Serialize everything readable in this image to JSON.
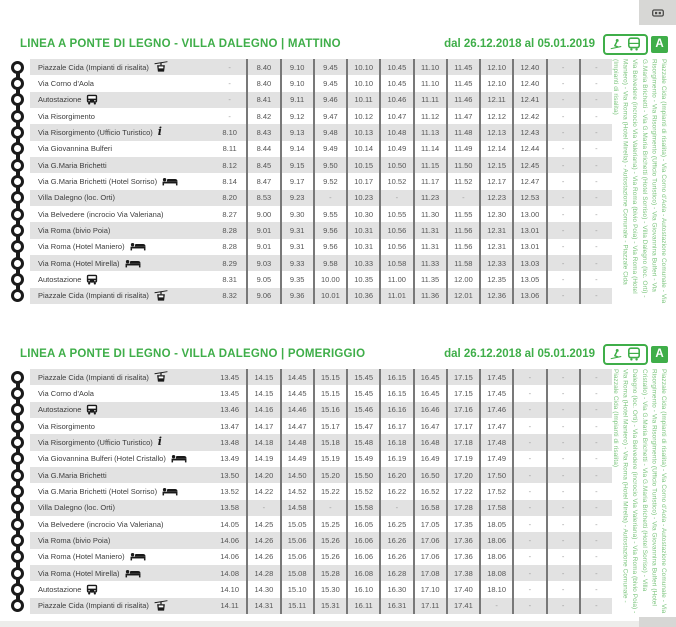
{
  "page": {
    "colors": {
      "green": "#3fae49",
      "light_green": "#7cc57e",
      "row_alt": "#e2e2e2",
      "separator": "#787878"
    },
    "top_widget_icon": "mini-bus"
  },
  "badge": {
    "letter": "A"
  },
  "sections": [
    {
      "id": "mattino",
      "title": "LINEA A PONTE DI LEGNO - VILLA DALEGNO | MATTINO",
      "date_range": "dal 26.12.2018 al 05.01.2019",
      "route_summary": "Piazzale Cida (Impianti di risalita) - Via Corno d'Aola - Autostazione Comunale - Via Risorgimento - Via Risorgimento (Ufficio Turistico) - Via Giovannina Bulferi - Via G.Maria Brichetti - Via G.Maria Brichetti (Hotel Sorriso) - Villa Dalegno (loc. Orti) - Via Belvedere (incrocio Via Valeriana) - Via Roma (bivio Poia) - Via Roma (Hotel Maniero) - Via Roma (Hotel Mirella) - Autostazione Comunale - Piazzale Cida (Impianti di risalita)",
      "rows": [
        {
          "stop": "Piazzale Cida (Impianti di risalita)",
          "icon": "cablecar",
          "times": [
            "-",
            "8.40",
            "9.10",
            "9.45",
            "10.10",
            "10.45",
            "11.10",
            "11.45",
            "12.10",
            "12.40",
            "-",
            "-"
          ]
        },
        {
          "stop": "Via Corno d'Aola",
          "icon": null,
          "times": [
            "-",
            "8.40",
            "9.10",
            "9.45",
            "10.10",
            "10.45",
            "11.10",
            "11.45",
            "12.10",
            "12.40",
            "-",
            "-"
          ]
        },
        {
          "stop": "Autostazione",
          "icon": "bus",
          "times": [
            "-",
            "8.41",
            "9.11",
            "9.46",
            "10.11",
            "10.46",
            "11.11",
            "11.46",
            "12.11",
            "12.41",
            "-",
            "-"
          ]
        },
        {
          "stop": "Via Risorgimento",
          "icon": null,
          "times": [
            "-",
            "8.42",
            "9.12",
            "9.47",
            "10.12",
            "10.47",
            "11.12",
            "11.47",
            "12.12",
            "12.42",
            "-",
            "-"
          ]
        },
        {
          "stop": "Via Risorgimento (Ufficio Turistico)",
          "icon": "info",
          "times": [
            "8.10",
            "8.43",
            "9.13",
            "9.48",
            "10.13",
            "10.48",
            "11.13",
            "11.48",
            "12.13",
            "12.43",
            "-",
            "-"
          ]
        },
        {
          "stop": "Via Giovannina Bulferi",
          "icon": null,
          "times": [
            "8.11",
            "8.44",
            "9.14",
            "9.49",
            "10.14",
            "10.49",
            "11.14",
            "11.49",
            "12.14",
            "12.44",
            "-",
            "-"
          ]
        },
        {
          "stop": "Via G.Maria Brichetti",
          "icon": null,
          "times": [
            "8.12",
            "8.45",
            "9.15",
            "9.50",
            "10.15",
            "10.50",
            "11.15",
            "11.50",
            "12.15",
            "12.45",
            "-",
            "-"
          ]
        },
        {
          "stop": "Via G.Maria Brichetti (Hotel Sorriso)",
          "icon": "bed",
          "times": [
            "8.14",
            "8.47",
            "9.17",
            "9.52",
            "10.17",
            "10.52",
            "11.17",
            "11.52",
            "12.17",
            "12.47",
            "-",
            "-"
          ]
        },
        {
          "stop": "Villa Dalegno (loc. Orti)",
          "icon": null,
          "times": [
            "8.20",
            "8.53",
            "9.23",
            "-",
            "10.23",
            "-",
            "11.23",
            "-",
            "12.23",
            "12.53",
            "-",
            "-"
          ]
        },
        {
          "stop": "Via Belvedere (incrocio Via Valeriana)",
          "icon": null,
          "times": [
            "8.27",
            "9.00",
            "9.30",
            "9.55",
            "10.30",
            "10.55",
            "11.30",
            "11.55",
            "12.30",
            "13.00",
            "-",
            "-"
          ]
        },
        {
          "stop": "Via Roma (bivio Poia)",
          "icon": null,
          "times": [
            "8.28",
            "9.01",
            "9.31",
            "9.56",
            "10.31",
            "10.56",
            "11.31",
            "11.56",
            "12.31",
            "13.01",
            "-",
            "-"
          ]
        },
        {
          "stop": "Via Roma (Hotel Maniero)",
          "icon": "bed",
          "times": [
            "8.28",
            "9.01",
            "9.31",
            "9.56",
            "10.31",
            "10.56",
            "11.31",
            "11.56",
            "12.31",
            "13.01",
            "-",
            "-"
          ]
        },
        {
          "stop": "Via Roma (Hotel Mirella)",
          "icon": "bed",
          "times": [
            "8.29",
            "9.03",
            "9.33",
            "9.58",
            "10.33",
            "10.58",
            "11.33",
            "11.58",
            "12.33",
            "13.03",
            "-",
            "-"
          ]
        },
        {
          "stop": "Autostazione",
          "icon": "bus",
          "times": [
            "8.31",
            "9.05",
            "9.35",
            "10.00",
            "10.35",
            "11.00",
            "11.35",
            "12.00",
            "12.35",
            "13.05",
            "-",
            "-"
          ]
        },
        {
          "stop": "Piazzale Cida (Impianti di risalita)",
          "icon": "cablecar",
          "times": [
            "8.32",
            "9.06",
            "9.36",
            "10.01",
            "10.36",
            "11.01",
            "11.36",
            "12.01",
            "12.36",
            "13.06",
            "-",
            "-"
          ]
        }
      ]
    },
    {
      "id": "pomeriggio",
      "title": "LINEA A PONTE DI LEGNO - VILLA DALEGNO | POMERIGGIO",
      "date_range": "dal 26.12.2018 al 05.01.2019",
      "route_summary": "Piazzale Cida (Impianti di risalita) - Via Corno d'Aola - Autostazione Comunale - Via Risorgimento - Via Risorgimento (Ufficio Turistico) - Via Giovannina Bulferi (Hotel Cristallo) - Via G.Maria Brichetti - Via G.Maria Brichetti (Hotel Sorriso) - Villa Dalegno (loc. Orti) - Via Belvedere (incrocio Via Valeriana) - Via Roma (bivio Poia) - Via Roma (Hotel Maniero) - Via Roma (Hotel Mirella) - Autostazione Comunale - Piazzale Cida (Impianti di risalita)",
      "rows": [
        {
          "stop": "Piazzale Cida (Impianti di risalita)",
          "icon": "cablecar",
          "times": [
            "13.45",
            "14.15",
            "14.45",
            "15.15",
            "15.45",
            "16.15",
            "16.45",
            "17.15",
            "17.45",
            "-",
            "-",
            "-"
          ]
        },
        {
          "stop": "Via Corno d'Aola",
          "icon": null,
          "times": [
            "13.45",
            "14.15",
            "14.45",
            "15.15",
            "15.45",
            "16.15",
            "16.45",
            "17.15",
            "17.45",
            "-",
            "-",
            "-"
          ]
        },
        {
          "stop": "Autostazione",
          "icon": "bus",
          "times": [
            "13.46",
            "14.16",
            "14.46",
            "15.16",
            "15.46",
            "16.16",
            "16.46",
            "17.16",
            "17.46",
            "-",
            "-",
            "-"
          ]
        },
        {
          "stop": "Via Risorgimento",
          "icon": null,
          "times": [
            "13.47",
            "14.17",
            "14.47",
            "15.17",
            "15.47",
            "16.17",
            "16.47",
            "17.17",
            "17.47",
            "-",
            "-",
            "-"
          ]
        },
        {
          "stop": "Via Risorgimento (Ufficio Turistico)",
          "icon": "info",
          "times": [
            "13.48",
            "14.18",
            "14.48",
            "15.18",
            "15.48",
            "16.18",
            "16.48",
            "17.18",
            "17.48",
            "-",
            "-",
            "-"
          ]
        },
        {
          "stop": "Via Giovannina Bulferi (Hotel Cristallo)",
          "icon": "bed",
          "times": [
            "13.49",
            "14.19",
            "14.49",
            "15.19",
            "15.49",
            "16.19",
            "16.49",
            "17.19",
            "17.49",
            "-",
            "-",
            "-"
          ]
        },
        {
          "stop": "Via G.Maria Brichetti",
          "icon": null,
          "times": [
            "13.50",
            "14.20",
            "14.50",
            "15.20",
            "15.50",
            "16.20",
            "16.50",
            "17.20",
            "17.50",
            "-",
            "-",
            "-"
          ]
        },
        {
          "stop": "Via G.Maria Brichetti (Hotel Sorriso)",
          "icon": "bed",
          "times": [
            "13.52",
            "14.22",
            "14.52",
            "15.22",
            "15.52",
            "16.22",
            "16.52",
            "17.22",
            "17.52",
            "-",
            "-",
            "-"
          ]
        },
        {
          "stop": "Villa Dalegno (loc. Orti)",
          "icon": null,
          "times": [
            "13.58",
            "-",
            "14.58",
            "-",
            "15.58",
            "-",
            "16.58",
            "17.28",
            "17.58",
            "-",
            "-",
            "-"
          ]
        },
        {
          "stop": "Via Belvedere (incrocio Via Valeriana)",
          "icon": null,
          "times": [
            "14.05",
            "14.25",
            "15.05",
            "15.25",
            "16.05",
            "16.25",
            "17.05",
            "17.35",
            "18.05",
            "-",
            "-",
            "-"
          ]
        },
        {
          "stop": "Via Roma (bivio Poia)",
          "icon": null,
          "times": [
            "14.06",
            "14.26",
            "15.06",
            "15.26",
            "16.06",
            "16.26",
            "17.06",
            "17.36",
            "18.06",
            "-",
            "-",
            "-"
          ]
        },
        {
          "stop": "Via Roma (Hotel Maniero)",
          "icon": "bed",
          "times": [
            "14.06",
            "14.26",
            "15.06",
            "15.26",
            "16.06",
            "16.26",
            "17.06",
            "17.36",
            "18.06",
            "-",
            "-",
            "-"
          ]
        },
        {
          "stop": "Via Roma (Hotel Mirella)",
          "icon": "bed",
          "times": [
            "14.08",
            "14.28",
            "15.08",
            "15.28",
            "16.08",
            "16.28",
            "17.08",
            "17.38",
            "18.08",
            "-",
            "-",
            "-"
          ]
        },
        {
          "stop": "Autostazione",
          "icon": "bus",
          "times": [
            "14.10",
            "14.30",
            "15.10",
            "15.30",
            "16.10",
            "16.30",
            "17.10",
            "17.40",
            "18.10",
            "-",
            "-",
            "-"
          ]
        },
        {
          "stop": "Piazzale Cida (Impianti di risalita)",
          "icon": "cablecar",
          "times": [
            "14.11",
            "14.31",
            "15.11",
            "15.31",
            "16.11",
            "16.31",
            "17.11",
            "17.41",
            "-",
            "-",
            "-",
            "-"
          ]
        }
      ]
    }
  ]
}
